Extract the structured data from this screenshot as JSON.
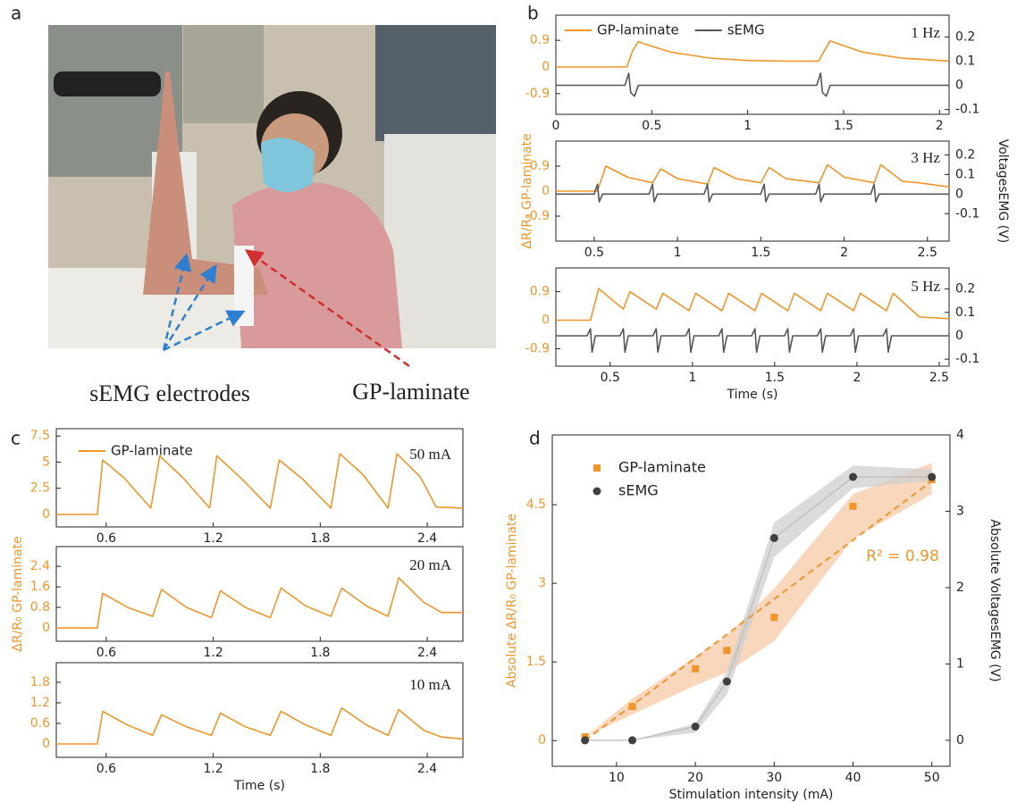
{
  "panel_labels": [
    "a",
    "b",
    "c",
    "d"
  ],
  "photo": {
    "labels": [
      "sEMG electrodes",
      "GP-laminate"
    ]
  },
  "chart_data": [
    {
      "type": "line",
      "annotation": "1 Hz",
      "xlim": [
        0,
        2.05
      ],
      "xticks": [
        0,
        0.5,
        1,
        1.5,
        2
      ],
      "ylim": [
        -1.6,
        1.75
      ],
      "yticks": [
        -0.9,
        0,
        0.9
      ],
      "y2lim": [
        -0.12,
        0.29
      ],
      "y2ticks": [
        -0.1,
        0,
        0.1,
        0.2
      ],
      "ycolor": "#f0952a",
      "series": [
        {
          "name": "GP-laminate",
          "color": "#f0952a",
          "x": [
            0,
            0.37,
            0.4,
            0.43,
            0.5,
            0.6,
            0.8,
            1.0,
            1.2,
            1.37,
            1.4,
            1.43,
            1.5,
            1.6,
            1.8,
            2.05
          ],
          "values": [
            0,
            0,
            0.55,
            0.85,
            0.7,
            0.5,
            0.3,
            0.22,
            0.2,
            0.2,
            0.55,
            0.88,
            0.72,
            0.5,
            0.3,
            0.2
          ]
        },
        {
          "name": "sEMG",
          "color": "#555555",
          "axis": "y2",
          "x": [
            0,
            0.36,
            0.38,
            0.39,
            0.41,
            0.43,
            1.36,
            1.38,
            1.39,
            1.41,
            1.43,
            2.05
          ],
          "values": [
            0,
            0,
            0.05,
            -0.03,
            -0.045,
            0,
            0,
            0.05,
            -0.03,
            -0.045,
            0,
            0
          ]
        }
      ]
    },
    {
      "type": "line",
      "annotation": "3 Hz",
      "xlim": [
        0.27,
        2.63
      ],
      "xticks": [
        0.5,
        1,
        1.5,
        2,
        2.5
      ],
      "ylim": [
        -1.8,
        1.8
      ],
      "yticks": [
        -0.9,
        0,
        0.9
      ],
      "y2lim": [
        -0.24,
        0.27
      ],
      "y2ticks": [
        -0.1,
        0,
        0.1,
        0.2
      ],
      "ycolor": "#f0952a",
      "ylabel": "ΔR/R₀ GP-laminate",
      "y2label": "VoltagesEMG (V)",
      "series": [
        {
          "color": "#f0952a",
          "x": [
            0.27,
            0.52,
            0.57,
            0.7,
            0.85,
            0.9,
            1.0,
            1.18,
            1.22,
            1.35,
            1.5,
            1.55,
            1.65,
            1.85,
            1.9,
            2.0,
            2.18,
            2.22,
            2.35,
            2.45,
            2.63
          ],
          "values": [
            0,
            0,
            0.9,
            0.5,
            0.3,
            0.8,
            0.45,
            0.25,
            0.85,
            0.45,
            0.3,
            0.85,
            0.45,
            0.3,
            0.95,
            0.5,
            0.3,
            0.95,
            0.35,
            0.3,
            0.15
          ]
        },
        {
          "color": "#555555",
          "axis": "y2",
          "x": [
            0.27,
            0.5,
            0.52,
            0.53,
            0.55,
            0.83,
            0.85,
            0.86,
            0.88,
            1.16,
            1.18,
            1.19,
            1.21,
            1.5,
            1.52,
            1.53,
            1.55,
            1.83,
            1.85,
            1.86,
            1.88,
            2.16,
            2.18,
            2.19,
            2.21,
            2.63
          ],
          "values": [
            0,
            0,
            0.05,
            -0.04,
            0,
            0,
            0.05,
            -0.04,
            0,
            0,
            0.05,
            -0.04,
            0,
            0,
            0.05,
            -0.04,
            0,
            0,
            0.05,
            -0.04,
            0,
            0,
            0.05,
            -0.04,
            0,
            0
          ]
        }
      ]
    },
    {
      "type": "line",
      "annotation": "5 Hz",
      "xlim": [
        0.17,
        2.56
      ],
      "xticks": [
        0.5,
        1,
        1.5,
        2,
        2.5
      ],
      "ylim": [
        -1.45,
        1.65
      ],
      "yticks": [
        -0.9,
        0,
        0.9
      ],
      "y2lim": [
        -0.13,
        0.29
      ],
      "y2ticks": [
        -0.1,
        0,
        0.1,
        0.2
      ],
      "ycolor": "#f0952a",
      "xlabel": "Time (s)",
      "series": [
        {
          "color": "#f0952a",
          "x": [
            0.17,
            0.38,
            0.43,
            0.58,
            0.62,
            0.78,
            0.82,
            0.98,
            1.02,
            1.18,
            1.22,
            1.38,
            1.42,
            1.58,
            1.62,
            1.78,
            1.82,
            1.98,
            2.02,
            2.18,
            2.22,
            2.38,
            2.56
          ],
          "values": [
            0,
            0,
            1.0,
            0.35,
            0.9,
            0.35,
            0.85,
            0.3,
            0.85,
            0.3,
            0.85,
            0.3,
            0.85,
            0.3,
            0.85,
            0.3,
            0.85,
            0.3,
            0.85,
            0.3,
            0.85,
            0.1,
            0.05
          ]
        },
        {
          "color": "#555555",
          "axis": "y2",
          "x": [
            0.17,
            0.36,
            0.38,
            0.39,
            0.41,
            0.56,
            0.58,
            0.59,
            0.61,
            0.76,
            0.78,
            0.79,
            0.81,
            0.96,
            0.98,
            0.99,
            1.01,
            1.16,
            1.18,
            1.19,
            1.21,
            1.36,
            1.38,
            1.39,
            1.41,
            1.56,
            1.58,
            1.59,
            1.61,
            1.76,
            1.78,
            1.79,
            1.81,
            1.96,
            1.98,
            1.99,
            2.01,
            2.16,
            2.18,
            2.19,
            2.21,
            2.56
          ],
          "values": [
            0,
            0,
            0.03,
            -0.07,
            0,
            0,
            0.03,
            -0.07,
            0,
            0,
            0.03,
            -0.07,
            0,
            0,
            0.03,
            -0.07,
            0,
            0,
            0.03,
            -0.07,
            0,
            0,
            0.03,
            -0.07,
            0,
            0,
            0.03,
            -0.07,
            0,
            0,
            0.03,
            -0.07,
            0,
            0,
            0.03,
            -0.07,
            0,
            0,
            0.03,
            -0.07,
            0,
            0
          ]
        }
      ]
    },
    {
      "type": "line",
      "annotation": "50 mA",
      "xlim": [
        0.32,
        2.6
      ],
      "xticks": [
        0.6,
        1.2,
        1.8,
        2.4
      ],
      "ylim": [
        -1.2,
        8.2
      ],
      "yticks": [
        0,
        2.5,
        5,
        7.5
      ],
      "ycolor": "#f0952a",
      "series": [
        {
          "name": "GP-laminate",
          "color": "#f0952a",
          "x": [
            0.32,
            0.55,
            0.58,
            0.7,
            0.85,
            0.9,
            1.03,
            1.18,
            1.22,
            1.36,
            1.52,
            1.57,
            1.7,
            1.86,
            1.91,
            2.04,
            2.18,
            2.23,
            2.36,
            2.45,
            2.6
          ],
          "values": [
            0,
            0,
            5.2,
            3.5,
            0.6,
            5.6,
            3.5,
            0.6,
            5.6,
            3.4,
            0.6,
            5.2,
            3.4,
            0.6,
            5.8,
            3.8,
            0.6,
            5.8,
            3.6,
            0.7,
            0.6
          ]
        }
      ]
    },
    {
      "type": "line",
      "annotation": "20 mA",
      "xlim": [
        0.32,
        2.6
      ],
      "xticks": [
        0.6,
        1.2,
        1.8,
        2.4
      ],
      "ylim": [
        -0.52,
        3.17
      ],
      "yticks": [
        0,
        0.8,
        1.6,
        2.4
      ],
      "ycolor": "#f0952a",
      "ylabel": "ΔR/R₀ GP-laminate",
      "series": [
        {
          "color": "#f0952a",
          "x": [
            0.32,
            0.55,
            0.58,
            0.72,
            0.86,
            0.91,
            1.05,
            1.19,
            1.24,
            1.38,
            1.52,
            1.58,
            1.72,
            1.86,
            1.92,
            2.06,
            2.18,
            2.24,
            2.38,
            2.48,
            2.6
          ],
          "values": [
            0,
            0,
            1.35,
            0.8,
            0.45,
            1.5,
            0.8,
            0.4,
            1.45,
            0.8,
            0.4,
            1.55,
            0.85,
            0.45,
            1.55,
            0.85,
            0.45,
            1.95,
            1.0,
            0.6,
            0.6
          ]
        }
      ]
    },
    {
      "type": "line",
      "annotation": "10 mA",
      "xlim": [
        0.32,
        2.6
      ],
      "xticks": [
        0.6,
        1.2,
        1.8,
        2.4
      ],
      "ylim": [
        -0.39,
        2.37
      ],
      "yticks": [
        0,
        0.6,
        1.2,
        1.8
      ],
      "ycolor": "#f0952a",
      "xlabel": "Time (s)",
      "series": [
        {
          "color": "#f0952a",
          "x": [
            0.32,
            0.55,
            0.58,
            0.72,
            0.86,
            0.91,
            1.05,
            1.19,
            1.24,
            1.38,
            1.52,
            1.58,
            1.72,
            1.86,
            1.92,
            2.06,
            2.18,
            2.24,
            2.38,
            2.48,
            2.6
          ],
          "values": [
            0,
            0,
            0.95,
            0.55,
            0.25,
            0.85,
            0.5,
            0.25,
            0.9,
            0.5,
            0.25,
            0.95,
            0.55,
            0.25,
            1.05,
            0.55,
            0.25,
            1.0,
            0.4,
            0.2,
            0.15
          ]
        }
      ]
    },
    {
      "type": "scatter",
      "annotation": "R² = 0.98",
      "xlim": [
        1.85,
        52.3
      ],
      "xticks": [
        10,
        20,
        30,
        40,
        50
      ],
      "ylim": [
        -0.49,
        5.83
      ],
      "yticks": [
        0,
        1.5,
        3,
        4.5
      ],
      "y2lim": [
        -0.34,
        4.0
      ],
      "y2ticks": [
        0,
        1,
        2,
        3,
        4
      ],
      "ycolor": "#f0952a",
      "xlabel": "Stimulation intensity (mA)",
      "ylabel": "Absolute ΔR/R₀ GP-laminate",
      "y2label": "Absolute VoltagesEMG (V)",
      "fit_line": {
        "x": [
          6,
          50
        ],
        "values": [
          0,
          4.95
        ],
        "color": "#f0952a"
      },
      "series": [
        {
          "name": "GP-laminate",
          "color": "#f0952a",
          "band_color": "#f7c9a6",
          "x": [
            6,
            12,
            20,
            24,
            30,
            40,
            50
          ],
          "values": [
            0.07,
            0.65,
            1.37,
            1.72,
            2.35,
            4.47,
            4.98
          ],
          "band_lower": [
            0.07,
            0.5,
            1.05,
            1.3,
            1.9,
            3.85,
            4.7
          ],
          "band_upper": [
            0.07,
            0.8,
            1.6,
            2.0,
            2.9,
            4.7,
            5.3
          ]
        },
        {
          "name": "sEMG",
          "color": "#404040",
          "band_color": "#cfcfcf",
          "axis": "y2",
          "x": [
            6,
            12,
            20,
            24,
            30,
            40,
            50
          ],
          "values": [
            0,
            0,
            0.18,
            0.77,
            2.65,
            3.45,
            3.45
          ],
          "band_lower": [
            0,
            0,
            0.1,
            0.6,
            2.4,
            3.3,
            3.4
          ],
          "band_upper": [
            0,
            0,
            0.22,
            0.9,
            2.85,
            3.6,
            3.55
          ]
        }
      ]
    }
  ]
}
